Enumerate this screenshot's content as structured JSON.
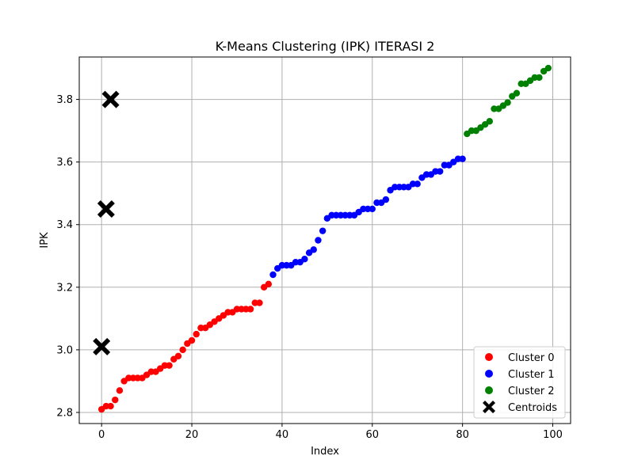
{
  "chart_data": {
    "type": "scatter",
    "title": "K-Means Clustering (IPK) ITERASI 2",
    "xlabel": "Index",
    "ylabel": "IPK",
    "xlim": [
      -4.95,
      103.95
    ],
    "ylim": [
      2.7645,
      3.9355
    ],
    "xticks": [
      0,
      20,
      40,
      60,
      80,
      100
    ],
    "yticks": [
      2.8,
      3.0,
      3.2,
      3.4,
      3.6,
      3.8
    ],
    "grid": true,
    "legend_position": "lower-right",
    "series": [
      {
        "name": "Cluster 0",
        "color": "#ff0000",
        "x": [
          0,
          1,
          2,
          3,
          4,
          5,
          6,
          7,
          8,
          9,
          10,
          11,
          12,
          13,
          14,
          15,
          16,
          17,
          18,
          19,
          20,
          21,
          22,
          23,
          24,
          25,
          26,
          27,
          28,
          29,
          30,
          31,
          32,
          33,
          34,
          35,
          36,
          37
        ],
        "y": [
          2.81,
          2.82,
          2.82,
          2.84,
          2.87,
          2.9,
          2.91,
          2.91,
          2.91,
          2.91,
          2.92,
          2.93,
          2.93,
          2.94,
          2.95,
          2.95,
          2.97,
          2.98,
          3.0,
          3.02,
          3.03,
          3.05,
          3.07,
          3.07,
          3.08,
          3.09,
          3.1,
          3.11,
          3.12,
          3.12,
          3.13,
          3.13,
          3.13,
          3.13,
          3.15,
          3.15,
          3.2,
          3.21
        ]
      },
      {
        "name": "Cluster 1",
        "color": "#0000ff",
        "x": [
          38,
          39,
          40,
          41,
          42,
          43,
          44,
          45,
          46,
          47,
          48,
          49,
          50,
          51,
          52,
          53,
          54,
          55,
          56,
          57,
          58,
          59,
          60,
          61,
          62,
          63,
          64,
          65,
          66,
          67,
          68,
          69,
          70,
          71,
          72,
          73,
          74,
          75,
          76,
          77,
          78,
          79,
          80
        ],
        "y": [
          3.24,
          3.26,
          3.27,
          3.27,
          3.27,
          3.28,
          3.28,
          3.29,
          3.31,
          3.32,
          3.35,
          3.38,
          3.42,
          3.43,
          3.43,
          3.43,
          3.43,
          3.43,
          3.43,
          3.44,
          3.45,
          3.45,
          3.45,
          3.47,
          3.47,
          3.48,
          3.51,
          3.52,
          3.52,
          3.52,
          3.52,
          3.53,
          3.53,
          3.55,
          3.56,
          3.56,
          3.57,
          3.57,
          3.59,
          3.59,
          3.6,
          3.61,
          3.61
        ]
      },
      {
        "name": "Cluster 2",
        "color": "#008000",
        "x": [
          81,
          82,
          83,
          84,
          85,
          86,
          87,
          88,
          89,
          90,
          91,
          92,
          93,
          94,
          95,
          96,
          97,
          98,
          99
        ],
        "y": [
          3.69,
          3.7,
          3.7,
          3.71,
          3.72,
          3.73,
          3.77,
          3.77,
          3.78,
          3.79,
          3.81,
          3.82,
          3.85,
          3.85,
          3.86,
          3.87,
          3.87,
          3.89,
          3.9
        ]
      }
    ],
    "centroids": {
      "name": "Centroids",
      "color": "#000000",
      "x": [
        0,
        1,
        2
      ],
      "y": [
        3.01,
        3.45,
        3.8
      ]
    }
  }
}
